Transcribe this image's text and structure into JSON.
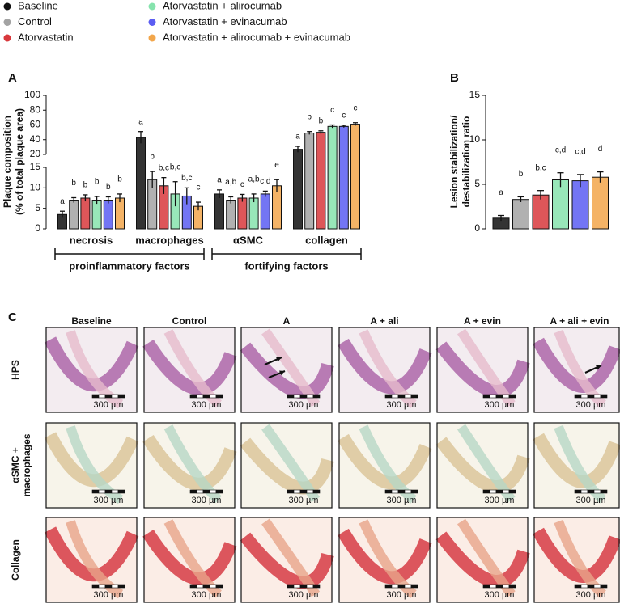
{
  "chart_data": [
    {
      "type": "bar",
      "panel": "A",
      "ylabel": [
        "Plaque composition",
        "(% of total plaque area)"
      ],
      "categories": [
        "necrosis",
        "macrophages",
        "αSMC",
        "collagen"
      ],
      "groups": [
        "proinflammatory factors",
        "fortifying factors"
      ],
      "segments": [
        {
          "ylim": [
            0,
            15
          ],
          "yticks": [
            0,
            5,
            10,
            15
          ]
        },
        {
          "ylim": [
            20,
            100
          ],
          "yticks": [
            20,
            40,
            60,
            80,
            100
          ]
        }
      ],
      "series": [
        {
          "name": "Baseline",
          "color": "#111111",
          "values": [
            3.5,
            43,
            8.5,
            27
          ],
          "errors": [
            0.8,
            8,
            1,
            4
          ],
          "letters": [
            "a",
            "a",
            "a",
            "a"
          ]
        },
        {
          "name": "Control",
          "color": "#a3a3a3",
          "values": [
            7,
            12,
            7,
            49
          ],
          "errors": [
            0.6,
            2,
            0.8,
            2
          ],
          "letters": [
            "b",
            "b",
            "a,b",
            "b"
          ]
        },
        {
          "name": "Atorvastatin",
          "color": "#d8383c",
          "values": [
            7.5,
            10.5,
            7.5,
            50
          ],
          "errors": [
            0.8,
            2,
            0.9,
            2
          ],
          "letters": [
            "b",
            "b,c",
            "c",
            "b"
          ]
        },
        {
          "name": "Atorvastatin + alirocumab",
          "color": "#86e3ad",
          "values": [
            7,
            8.5,
            7.5,
            58
          ],
          "errors": [
            0.9,
            3,
            1,
            2
          ],
          "letters": [
            "b",
            "b,c",
            "a,b",
            "c"
          ]
        },
        {
          "name": "Atorvastatin + evinacumab",
          "color": "#5b5df2",
          "values": [
            7,
            8,
            8.5,
            58
          ],
          "errors": [
            0.8,
            2,
            0.7,
            1.5
          ],
          "letters": [
            "b",
            "b,c",
            "c,d",
            "c"
          ]
        },
        {
          "name": "Atorvastatin + alirocumab + evinacumab",
          "color": "#f2a64b",
          "values": [
            7.5,
            5.5,
            10.5,
            61
          ],
          "errors": [
            1,
            1,
            1.5,
            2
          ],
          "letters": [
            "b",
            "c",
            "e",
            "c"
          ]
        }
      ]
    },
    {
      "type": "bar",
      "panel": "B",
      "ylabel": [
        "Lesion stabilization/",
        "destabilization ratio"
      ],
      "categories": [
        null,
        null,
        null,
        null,
        null,
        null
      ],
      "values": [
        1.2,
        3.3,
        3.8,
        5.5,
        5.4,
        5.8
      ],
      "errors": [
        0.3,
        0.3,
        0.5,
        0.8,
        0.7,
        0.6
      ],
      "letters": [
        "a",
        "b",
        "b,c",
        "c,d",
        "c,d",
        "d"
      ],
      "colors": [
        "#111111",
        "#a3a3a3",
        "#d8383c",
        "#86e3ad",
        "#5b5df2",
        "#f2a64b"
      ],
      "ylim": [
        0,
        15
      ],
      "yticks": [
        0,
        5,
        10,
        15
      ]
    }
  ],
  "panel_c": {
    "label": "C",
    "columns": [
      "Baseline",
      "Control",
      "A",
      "A + ali",
      "A + evin",
      "A + ali + evin"
    ],
    "rows": [
      [
        "HPS"
      ],
      [
        "αSMC +",
        "macrophages"
      ],
      [
        "Collagen"
      ]
    ],
    "scale_bar": "300 µm"
  }
}
